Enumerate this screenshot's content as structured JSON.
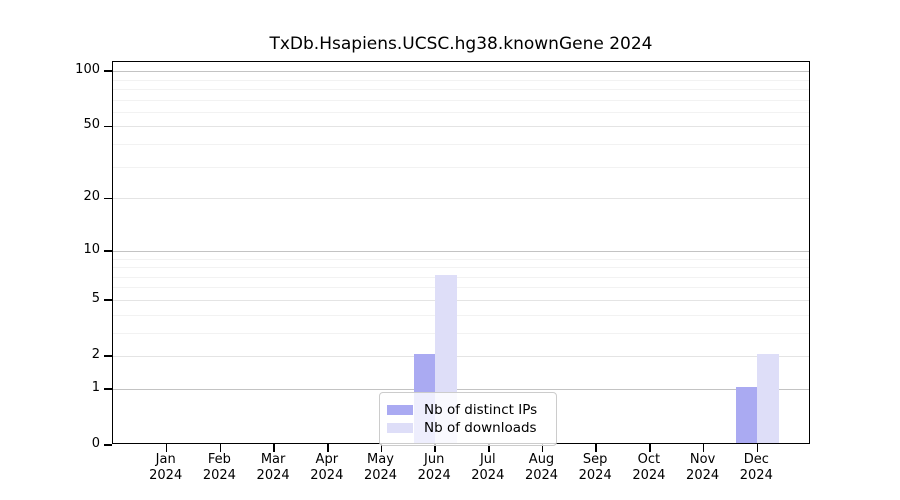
{
  "chart_data": {
    "type": "bar",
    "title": "TxDb.Hsapiens.UCSC.hg38.knownGene 2024",
    "categories": [
      "Jan",
      "Feb",
      "Mar",
      "Apr",
      "May",
      "Jun",
      "Jul",
      "Aug",
      "Sep",
      "Oct",
      "Nov",
      "Dec"
    ],
    "category_subline": "2024",
    "series": [
      {
        "name": "Nb of distinct IPs",
        "color": "#aaaaf2",
        "values": [
          0,
          0,
          0,
          0,
          0,
          2,
          0,
          0,
          0,
          0,
          0,
          1
        ]
      },
      {
        "name": "Nb of downloads",
        "color": "#dedef8",
        "values": [
          0,
          0,
          0,
          0,
          0,
          7,
          0,
          0,
          0,
          0,
          0,
          2
        ]
      }
    ],
    "xlabel": "",
    "ylabel": "",
    "yscale": "log1p",
    "ylim": [
      0,
      100
    ],
    "yticks": [
      0,
      1,
      2,
      5,
      10,
      20,
      50,
      100
    ],
    "major_grid_values": [
      1,
      10,
      100
    ],
    "mid_grid_values": [
      2,
      5,
      20,
      50
    ],
    "minor_grid_values": [
      3,
      4,
      6,
      7,
      8,
      9,
      30,
      40,
      60,
      70,
      80,
      90
    ],
    "grid": true,
    "legend_position": "lower center",
    "colors": {
      "major_grid": "#c3c3c3",
      "mid_grid": "#e4e4e4",
      "minor_grid": "#f2f2f2",
      "axis": "#000000",
      "distinct_ips": "#aaaaf2",
      "downloads": "#dedef8"
    }
  }
}
